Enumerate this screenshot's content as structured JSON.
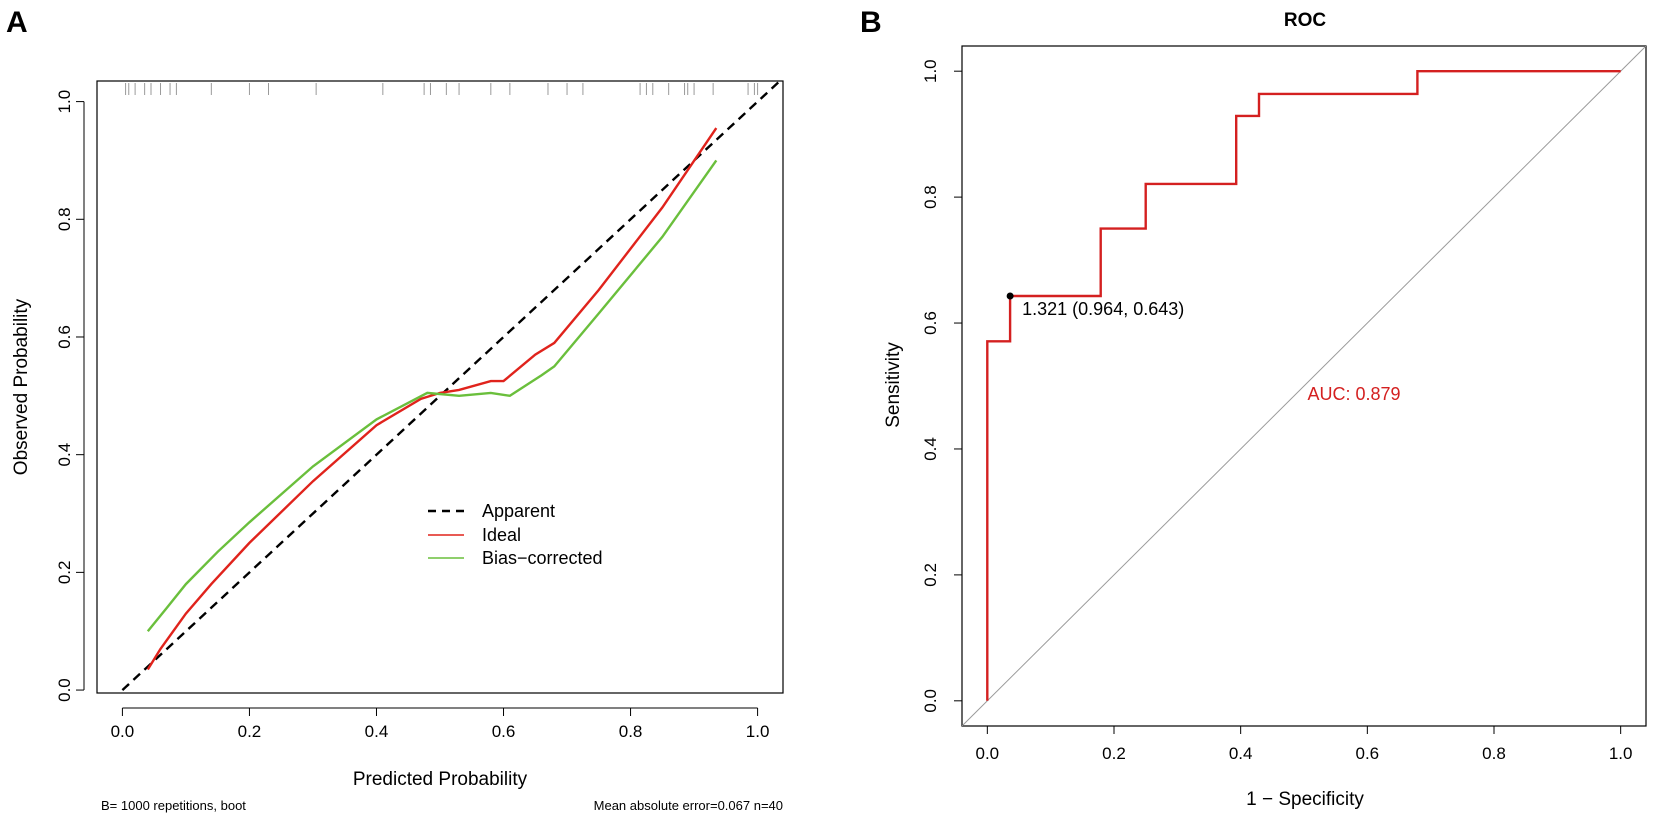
{
  "chart_data": [
    {
      "panel": "A",
      "type": "line",
      "title": "",
      "xlabel": "Predicted Probability",
      "ylabel": "Observed Probability",
      "xlim": [
        -0.04,
        1.04
      ],
      "ylim": [
        -0.005,
        1.035
      ],
      "xticks": [
        "0.0",
        "0.2",
        "0.4",
        "0.6",
        "0.8",
        "1.0"
      ],
      "yticks": [
        "0.0",
        "0.2",
        "0.4",
        "0.6",
        "0.8",
        "1.0"
      ],
      "grid": false,
      "legend_position": "center-right",
      "series": [
        {
          "name": "Apparent",
          "style": "dashed",
          "color": "#000000",
          "x": [
            0.0,
            1.04
          ],
          "y": [
            0.0,
            1.04
          ]
        },
        {
          "name": "Ideal",
          "style": "solid",
          "color": "#e0231c",
          "x": [
            0.04,
            0.06,
            0.1,
            0.14,
            0.2,
            0.3,
            0.4,
            0.47,
            0.5,
            0.53,
            0.58,
            0.6,
            0.65,
            0.68,
            0.75,
            0.85,
            0.935
          ],
          "y": [
            0.035,
            0.07,
            0.13,
            0.18,
            0.25,
            0.355,
            0.45,
            0.495,
            0.505,
            0.51,
            0.525,
            0.525,
            0.57,
            0.59,
            0.68,
            0.82,
            0.955
          ]
        },
        {
          "name": "Bias-corrected",
          "style": "solid",
          "color": "#6abf3c",
          "x": [
            0.04,
            0.07,
            0.1,
            0.15,
            0.2,
            0.3,
            0.4,
            0.48,
            0.53,
            0.58,
            0.61,
            0.66,
            0.68,
            0.75,
            0.85,
            0.935
          ],
          "y": [
            0.1,
            0.14,
            0.18,
            0.235,
            0.285,
            0.38,
            0.46,
            0.505,
            0.5,
            0.505,
            0.5,
            0.535,
            0.55,
            0.64,
            0.77,
            0.9
          ]
        }
      ],
      "rug_x": [
        0.005,
        0.01,
        0.02,
        0.035,
        0.045,
        0.06,
        0.075,
        0.085,
        0.14,
        0.2,
        0.23,
        0.305,
        0.41,
        0.475,
        0.485,
        0.51,
        0.53,
        0.58,
        0.61,
        0.67,
        0.7,
        0.725,
        0.815,
        0.825,
        0.835,
        0.86,
        0.885,
        0.89,
        0.9,
        0.93,
        0.985,
        0.995,
        1.0
      ],
      "footnote_left": "B= 1000 repetitions, boot",
      "footnote_right": "Mean absolute error=0.067 n=40"
    },
    {
      "panel": "B",
      "type": "line",
      "title": "ROC",
      "xlabel": "1 − Specificity",
      "ylabel": "Sensitivity",
      "xlim": [
        -0.04,
        1.04
      ],
      "ylim": [
        -0.04,
        1.04
      ],
      "xticks": [
        "0.0",
        "0.2",
        "0.4",
        "0.6",
        "0.8",
        "1.0"
      ],
      "yticks": [
        "0.0",
        "0.2",
        "0.4",
        "0.6",
        "0.8",
        "1.0"
      ],
      "grid": false,
      "series": [
        {
          "name": "ROC curve",
          "style": "step",
          "color": "#d42020",
          "x": [
            0.0,
            0.0,
            0.036,
            0.036,
            0.179,
            0.179,
            0.25,
            0.25,
            0.393,
            0.393,
            0.429,
            0.429,
            0.679,
            0.679,
            1.0
          ],
          "y": [
            0.0,
            0.571,
            0.571,
            0.643,
            0.643,
            0.75,
            0.75,
            0.821,
            0.821,
            0.929,
            0.929,
            0.964,
            0.964,
            1.0,
            1.0
          ]
        },
        {
          "name": "Reference",
          "style": "solid",
          "color": "#9a9a9a",
          "x": [
            -0.04,
            1.04
          ],
          "y": [
            -0.04,
            1.04
          ]
        }
      ],
      "point": {
        "x": 0.036,
        "y": 0.643,
        "label": "1.321 (0.964, 0.643)"
      },
      "auc_label": "AUC: 0.879",
      "auc_color": "#d42020"
    }
  ],
  "panel_letters": {
    "a": "A",
    "b": "B"
  },
  "legend": {
    "apparent": "Apparent",
    "ideal": "Ideal",
    "bias_corrected": "Bias−corrected"
  },
  "colors": {
    "ideal": "#e0231c",
    "bias_corrected": "#6abf3c",
    "roc": "#d42020",
    "reference": "#9a9a9a",
    "rug": "#9a9a9a"
  }
}
